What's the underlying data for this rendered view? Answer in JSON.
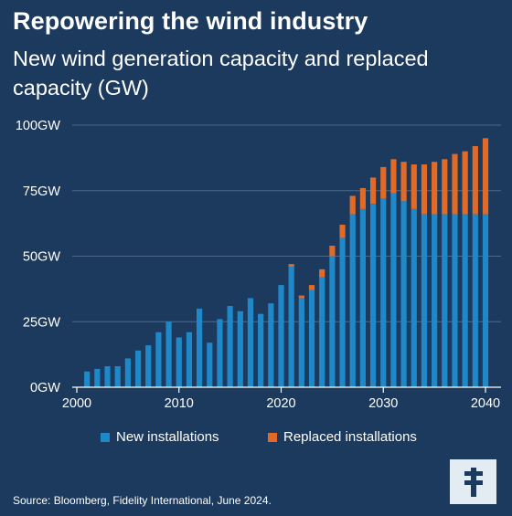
{
  "header": {
    "title": "Repowering the wind industry",
    "subtitle": "New wind generation capacity and replaced capacity (GW)"
  },
  "colors": {
    "background": "#1b3a5e",
    "new": "#1f88c9",
    "replaced": "#e06a26",
    "grid": "#4d6a8b"
  },
  "chart_data": {
    "type": "bar",
    "stacked": true,
    "categories": [
      2001,
      2002,
      2003,
      2004,
      2005,
      2006,
      2007,
      2008,
      2009,
      2010,
      2011,
      2012,
      2013,
      2014,
      2015,
      2016,
      2017,
      2018,
      2019,
      2020,
      2021,
      2022,
      2023,
      2024,
      2025,
      2026,
      2027,
      2028,
      2029,
      2030,
      2031,
      2032,
      2033,
      2034,
      2035,
      2036,
      2037,
      2038,
      2039,
      2040
    ],
    "series": [
      {
        "name": "New installations",
        "values": [
          6,
          7,
          8,
          8,
          11,
          14,
          16,
          21,
          25,
          19,
          21,
          30,
          17,
          26,
          31,
          29,
          34,
          28,
          32,
          39,
          46,
          34,
          37,
          42,
          50,
          57,
          66,
          68,
          70,
          72,
          74,
          71,
          68,
          66,
          66,
          66,
          66,
          66,
          66,
          66
        ]
      },
      {
        "name": "Replaced installations",
        "values": [
          0,
          0,
          0,
          0,
          0,
          0,
          0,
          0,
          0,
          0,
          0,
          0,
          0,
          0,
          0,
          0,
          0,
          0,
          0,
          0,
          1,
          1,
          2,
          3,
          4,
          5,
          7,
          8,
          10,
          12,
          13,
          15,
          17,
          19,
          20,
          21,
          23,
          24,
          26,
          29
        ]
      }
    ],
    "ylim": [
      0,
      100
    ],
    "yticks": [
      0,
      25,
      50,
      75,
      100
    ],
    "ytick_labels": [
      "0GW",
      "25GW",
      "50GW",
      "75GW",
      "100GW"
    ],
    "xticks": [
      2000,
      2010,
      2020,
      2030,
      2040
    ],
    "grid": true,
    "legend_position": "bottom"
  },
  "legend": {
    "new_label": "New installations",
    "replaced_label": "Replaced installations"
  },
  "footer": {
    "source": "Source: Bloomberg, Fidelity International, June 2024."
  },
  "logo_icon": "fidelity-f-logo-icon"
}
